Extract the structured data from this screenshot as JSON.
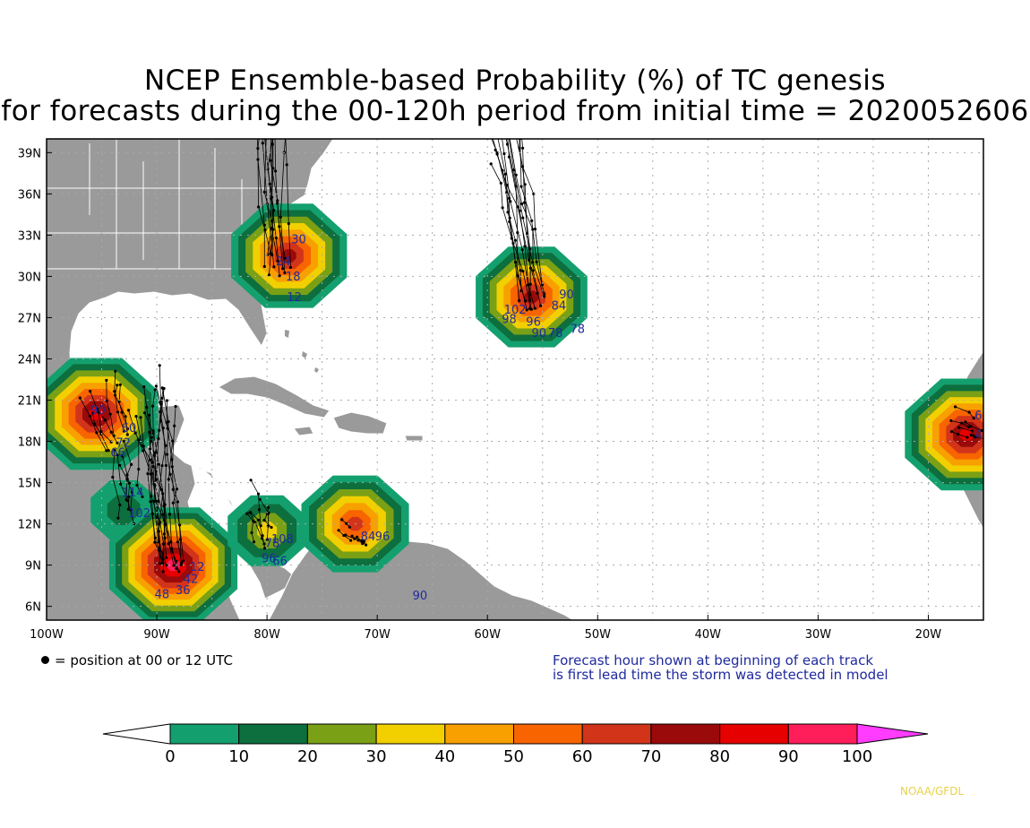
{
  "title": {
    "line1": "NCEP Ensemble-based Probability (%) of TC genesis",
    "line2": "for forecasts during the 00-120h period from initial time = 2020052606"
  },
  "axes": {
    "lat_labels": [
      "39N",
      "36N",
      "33N",
      "30N",
      "27N",
      "24N",
      "21N",
      "18N",
      "15N",
      "12N",
      "9N",
      "6N"
    ],
    "lat_values": [
      39,
      36,
      33,
      30,
      27,
      24,
      21,
      18,
      15,
      12,
      9,
      6
    ],
    "lon_labels": [
      "100W",
      "90W",
      "80W",
      "70W",
      "60W",
      "50W",
      "40W",
      "30W",
      "20W"
    ],
    "lon_values": [
      -100,
      -90,
      -80,
      -70,
      -60,
      -50,
      -40,
      -30,
      -20
    ],
    "lon_range": [
      -100,
      -15
    ],
    "lat_range": [
      5,
      40
    ],
    "grid": true
  },
  "legend": {
    "dot_note": "= position at 00 or 12 UTC",
    "forecast_note_line1": "Forecast hour shown at beginning of each track",
    "forecast_note_line2": "is first lead time the storm was detected in model"
  },
  "colorbar": {
    "ticks": [
      "0",
      "10",
      "20",
      "30",
      "40",
      "50",
      "60",
      "70",
      "80",
      "90",
      "100"
    ],
    "colors": [
      "#14a06e",
      "#0d6e3e",
      "#7aa016",
      "#f2d000",
      "#f7a000",
      "#f76400",
      "#d2341a",
      "#9a0a0a",
      "#e60000",
      "#ff1e5a"
    ],
    "under_color": "#ffffff",
    "over_color": "#ff3cff"
  },
  "credit": "NOAA/GFDL",
  "colors": {
    "land": "#9a9a9a",
    "ocean": "#ffffff",
    "track": "#000000",
    "hour_label": "#1f2a9e"
  },
  "genesis_areas": [
    {
      "name": "carolinas",
      "lon": -78.0,
      "lat": 31.5,
      "peak": 80
    },
    {
      "name": "central-atlantic",
      "lon": -56.0,
      "lat": 28.5,
      "peak": 75
    },
    {
      "name": "bay-of-campeche",
      "lon": -95.5,
      "lat": 20.0,
      "peak": 90
    },
    {
      "name": "gulf-of-honduras",
      "lon": -93.0,
      "lat": 13.0,
      "peak": 20
    },
    {
      "name": "pacific-central-america",
      "lon": -88.5,
      "lat": 9.0,
      "peak": 95
    },
    {
      "name": "western-caribbean",
      "lon": -80.0,
      "lat": 11.5,
      "peak": 35
    },
    {
      "name": "venezuela-coast",
      "lon": -72.0,
      "lat": 12.0,
      "peak": 70
    },
    {
      "name": "west-africa",
      "lon": -16.5,
      "lat": 18.5,
      "peak": 90
    }
  ],
  "hour_labels": [
    {
      "text": "30",
      "lon": -77.8,
      "lat": 32.4
    },
    {
      "text": "24",
      "lon": -79.2,
      "lat": 30.8
    },
    {
      "text": "18",
      "lon": -78.3,
      "lat": 29.7
    },
    {
      "text": "12",
      "lon": -78.2,
      "lat": 28.2
    },
    {
      "text": "90",
      "lon": -53.5,
      "lat": 28.4
    },
    {
      "text": "84",
      "lon": -54.2,
      "lat": 27.6
    },
    {
      "text": "102",
      "lon": -58.5,
      "lat": 27.3
    },
    {
      "text": "96",
      "lon": -56.5,
      "lat": 26.4
    },
    {
      "text": "98",
      "lon": -58.7,
      "lat": 26.6
    },
    {
      "text": "78",
      "lon": -52.5,
      "lat": 25.9
    },
    {
      "text": "90",
      "lon": -56.0,
      "lat": 25.6
    },
    {
      "text": "78",
      "lon": -54.5,
      "lat": 25.6
    },
    {
      "text": "90",
      "lon": -96.0,
      "lat": 20.0
    },
    {
      "text": "60",
      "lon": -93.2,
      "lat": 18.7
    },
    {
      "text": "72",
      "lon": -93.7,
      "lat": 17.6
    },
    {
      "text": "66",
      "lon": -94.2,
      "lat": 16.9
    },
    {
      "text": "114",
      "lon": -93.2,
      "lat": 14.0
    },
    {
      "text": "102",
      "lon": -92.6,
      "lat": 12.5
    },
    {
      "text": "12",
      "lon": -87.0,
      "lat": 8.6
    },
    {
      "text": "42",
      "lon": -87.6,
      "lat": 7.7
    },
    {
      "text": "48",
      "lon": -90.2,
      "lat": 6.6
    },
    {
      "text": "36",
      "lon": -88.3,
      "lat": 6.9
    },
    {
      "text": "108",
      "lon": -79.6,
      "lat": 10.6
    },
    {
      "text": "78",
      "lon": -80.2,
      "lat": 10.3
    },
    {
      "text": "96",
      "lon": -80.5,
      "lat": 9.2
    },
    {
      "text": "66",
      "lon": -79.5,
      "lat": 9.0
    },
    {
      "text": "96",
      "lon": -70.2,
      "lat": 10.8
    },
    {
      "text": "84",
      "lon": -71.5,
      "lat": 10.8
    },
    {
      "text": "90",
      "lon": -66.8,
      "lat": 6.5
    },
    {
      "text": "66",
      "lon": -15.8,
      "lat": 19.6
    },
    {
      "text": "48",
      "lon": -15.8,
      "lat": 18.2
    }
  ]
}
